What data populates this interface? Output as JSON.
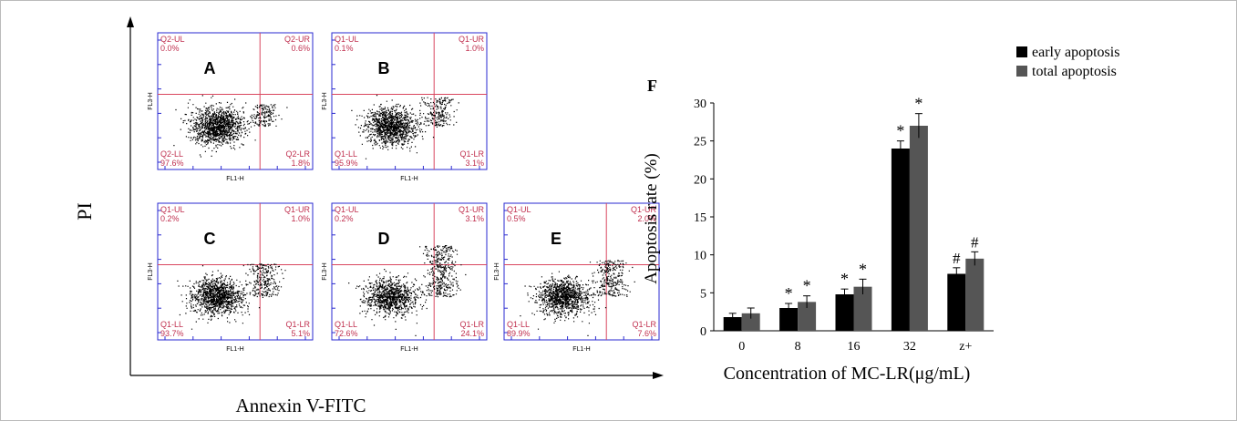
{
  "figure": {
    "left_axis_label": "PI",
    "bottom_axis_label": "Annexin V-FITC",
    "panel_axis_x": "FL1-H",
    "panel_axis_y": "FL3-H",
    "quadrant_line_color": "#d9475f",
    "frame_color": "#2a2ad0",
    "quadrant_text_color": "#c0304f"
  },
  "panels": [
    {
      "letter": "A",
      "ul": [
        "Q2-UL",
        "0.0%"
      ],
      "ur": [
        "Q2-UR",
        "0.6%"
      ],
      "ll": [
        "Q2-LL",
        "97.6%"
      ],
      "lr": [
        "Q2-LR",
        "1.8%"
      ]
    },
    {
      "letter": "B",
      "ul": [
        "Q1-UL",
        "0.1%"
      ],
      "ur": [
        "Q1-UR",
        "1.0%"
      ],
      "ll": [
        "Q1-LL",
        "95.9%"
      ],
      "lr": [
        "Q1-LR",
        "3.1%"
      ]
    },
    {
      "letter": "C",
      "ul": [
        "Q1-UL",
        "0.2%"
      ],
      "ur": [
        "Q1-UR",
        "1.0%"
      ],
      "ll": [
        "Q1-LL",
        "93.7%"
      ],
      "lr": [
        "Q1-LR",
        "5.1%"
      ]
    },
    {
      "letter": "D",
      "ul": [
        "Q1-UL",
        "0.2%"
      ],
      "ur": [
        "Q1-UR",
        "3.1%"
      ],
      "ll": [
        "Q1-LL",
        "72.6%"
      ],
      "lr": [
        "Q1-LR",
        "24.1%"
      ]
    },
    {
      "letter": "E",
      "ul": [
        "Q1-UL",
        "0.5%"
      ],
      "ur": [
        "Q1-UR",
        "2.0%"
      ],
      "ll": [
        "Q1-LL",
        "89.9%"
      ],
      "lr": [
        "Q1-LR",
        "7.6%"
      ]
    }
  ],
  "chart_data": {
    "type": "bar",
    "panel_label": "F",
    "categories": [
      "0",
      "8",
      "16",
      "32",
      "z+"
    ],
    "series": [
      {
        "name": "early apoptosis",
        "color": "#000000",
        "values": [
          1.8,
          3.0,
          4.8,
          24.0,
          7.5
        ],
        "errors": [
          0.5,
          0.6,
          0.7,
          1.0,
          0.8
        ]
      },
      {
        "name": "total apoptosis",
        "color": "#555555",
        "values": [
          2.3,
          3.8,
          5.8,
          27.0,
          9.5
        ],
        "errors": [
          0.7,
          0.8,
          1.0,
          1.6,
          0.9
        ]
      }
    ],
    "markers": [
      [
        "",
        "",
        "",
        "",
        "#"
      ],
      [
        "",
        "",
        "",
        "",
        "#"
      ]
    ],
    "star_markers": [
      [
        "",
        "*",
        "*",
        "*",
        ""
      ],
      [
        "",
        "*",
        "*",
        "*",
        ""
      ]
    ],
    "xlabel": "Concentration of MC-LR(μg/mL)",
    "ylabel": "Apoptosis rate (%)",
    "ylim": [
      0,
      30
    ],
    "yticks": [
      "0",
      "5",
      "10",
      "15",
      "20",
      "25",
      "30"
    ],
    "legend_position": "top-right",
    "grid": false
  }
}
